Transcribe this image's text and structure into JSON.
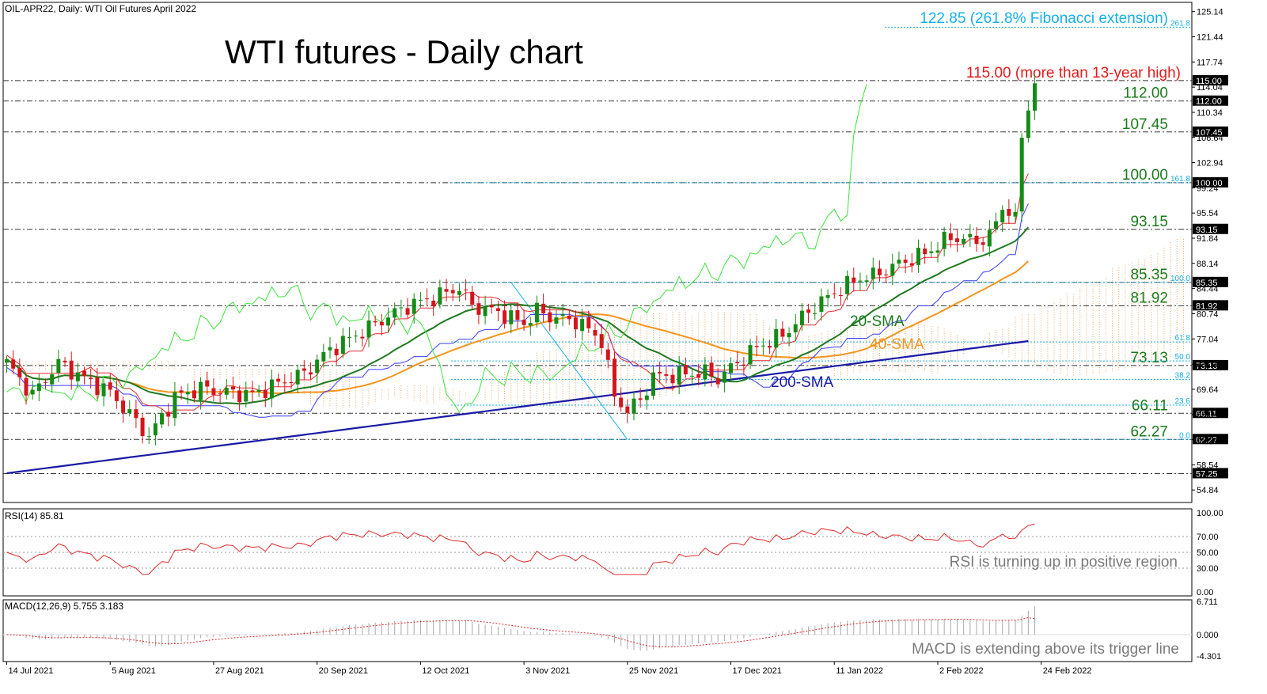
{
  "header": {
    "symbol_line": "OIL-APR22, Daily:  WTI Oil Futures April 2022",
    "big_title": "WTI futures - Daily chart"
  },
  "colors": {
    "sma20": "#1f7a1f",
    "sma40": "#f7941d",
    "sma200": "#1a1aa6",
    "bull": "#168a16",
    "bear": "#d4151b",
    "fib": "#17b0e6",
    "annotation_green": "#1c7a1c",
    "annotation_red": "#e41a1a",
    "rsi": "#e0292b",
    "macd_signal": "#e0292b",
    "macd_hist": "#a9a9a9"
  },
  "chart_data": {
    "type": "candlestick",
    "title": "WTI futures - Daily chart",
    "price_axis": {
      "ticks": [
        "125.14",
        "121.44",
        "117.74",
        "114.04",
        "110.34",
        "106.64",
        "102.94",
        "99.24",
        "95.54",
        "91.84",
        "88.14",
        "84.44",
        "80.74",
        "77.04",
        "73.34",
        "69.64",
        "65.94",
        "62.24",
        "58.54",
        "54.84"
      ],
      "range": [
        53.0,
        126.5
      ]
    },
    "x_axis": {
      "labels": [
        "14 Jul 2021",
        "5 Aug 2021",
        "27 Aug 2021",
        "20 Sep 2021",
        "12 Oct 2021",
        "3 Nov 2021",
        "25 Nov 2021",
        "17 Dec 2021",
        "11 Jan 2022",
        "2 Feb 2022",
        "24 Feb 2022"
      ],
      "label_index": [
        0,
        16,
        32,
        48,
        64,
        80,
        96,
        112,
        128,
        144,
        160
      ]
    },
    "levels": [
      {
        "value": 115.0,
        "text": "115.00 (more than 13-year high)",
        "tag": "115.00",
        "color": "red"
      },
      {
        "value": 112.0,
        "text": "112.00",
        "tag": "112.00",
        "color": "green"
      },
      {
        "value": 107.45,
        "text": "107.45",
        "tag": "107.45",
        "color": "green"
      },
      {
        "value": 100.0,
        "text": "100.00",
        "tag": "100.00",
        "color": "green"
      },
      {
        "value": 93.15,
        "text": "93.15",
        "tag": "93.15",
        "color": "green"
      },
      {
        "value": 85.35,
        "text": "85.35",
        "tag": "85.35",
        "color": "green"
      },
      {
        "value": 81.92,
        "text": "81.92",
        "tag": "81.92",
        "color": "green"
      },
      {
        "value": 73.13,
        "text": "73.13",
        "tag": "73.13",
        "color": "green"
      },
      {
        "value": 66.11,
        "text": "66.11",
        "tag": "66.11",
        "color": "green"
      },
      {
        "value": 62.27,
        "text": "62.27",
        "tag": "62.27",
        "color": "green"
      },
      {
        "value": 57.25,
        "text": "",
        "tag": "57.25",
        "color": "none"
      }
    ],
    "fibonacci": {
      "levels": [
        {
          "value": 122.85,
          "label": "261.8"
        },
        {
          "value": 100.0,
          "label": "161.8"
        },
        {
          "value": 85.35,
          "label": "100.0"
        },
        {
          "value": 76.6,
          "label": "61.8"
        },
        {
          "value": 73.8,
          "label": "50.0"
        },
        {
          "value": 71.1,
          "label": "38.2"
        },
        {
          "value": 67.3,
          "label": "23.6"
        },
        {
          "value": 62.27,
          "label": "0.0"
        }
      ],
      "extension_text": "122.85 (261.8% Fibonacci extension)"
    },
    "series_labels": {
      "sma20": "20-SMA",
      "sma40": "40-SMA",
      "sma200": "200-SMA"
    },
    "anchors": [
      [
        0,
        73.5
      ],
      [
        4,
        68.8
      ],
      [
        8,
        73.5
      ],
      [
        12,
        71.2
      ],
      [
        16,
        69.2
      ],
      [
        22,
        62.7
      ],
      [
        26,
        68.5
      ],
      [
        30,
        69.8
      ],
      [
        34,
        69.2
      ],
      [
        38,
        68.9
      ],
      [
        42,
        70.5
      ],
      [
        46,
        72.0
      ],
      [
        50,
        75.5
      ],
      [
        54,
        77.6
      ],
      [
        58,
        79.8
      ],
      [
        62,
        81.9
      ],
      [
        66,
        83.1
      ],
      [
        70,
        84.6
      ],
      [
        72,
        81.9
      ],
      [
        76,
        81.0
      ],
      [
        80,
        79.3
      ],
      [
        82,
        81.2
      ],
      [
        84,
        80.3
      ],
      [
        88,
        79.7
      ],
      [
        90,
        78.4
      ],
      [
        92,
        76.8
      ],
      [
        94,
        68.6
      ],
      [
        96,
        66.5
      ],
      [
        98,
        68.1
      ],
      [
        100,
        71.5
      ],
      [
        104,
        71.8
      ],
      [
        108,
        72.1
      ],
      [
        110,
        71.2
      ],
      [
        112,
        72.8
      ],
      [
        116,
        75.8
      ],
      [
        120,
        77.6
      ],
      [
        124,
        81.1
      ],
      [
        128,
        83.9
      ],
      [
        132,
        86.0
      ],
      [
        134,
        86.3
      ],
      [
        138,
        88.1
      ],
      [
        142,
        89.6
      ],
      [
        146,
        92.0
      ],
      [
        150,
        91.4
      ],
      [
        152,
        92.1
      ],
      [
        154,
        96.3
      ],
      [
        156,
        95.7
      ],
      [
        157,
        106.6
      ],
      [
        158,
        110.6
      ],
      [
        159,
        114.6
      ]
    ],
    "rsi": {
      "label": "RSI(14) 85.81",
      "ticks": [
        "100.00",
        "70.00",
        "50.00",
        "30.00",
        "0.00"
      ],
      "levels": [
        70,
        50,
        30
      ],
      "range": [
        -5,
        105
      ],
      "annotation": "RSI is turning up in positive region"
    },
    "macd": {
      "label": "MACD(12,26,9) 5.755 3.183",
      "ticks": [
        "6.711",
        "0.000",
        "-4.301"
      ],
      "range": [
        -5.4,
        7.0
      ],
      "annotation": "MACD is extending above its trigger line"
    }
  }
}
